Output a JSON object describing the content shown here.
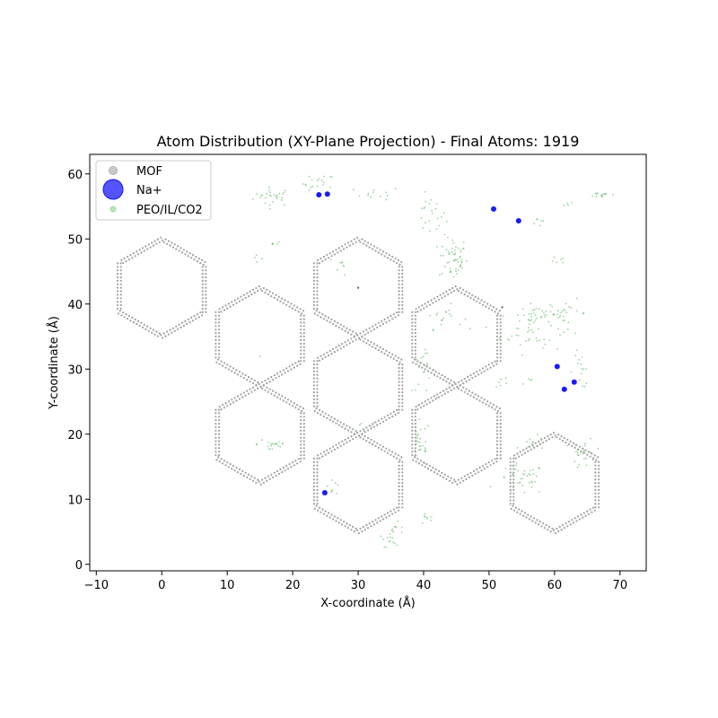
{
  "chart_data": {
    "type": "scatter",
    "title": "Atom Distribution (XY-Plane Projection) - Final Atoms: 1919",
    "xlabel": "X-coordinate (Å)",
    "ylabel": "Y-coordinate (Å)",
    "xlim": [
      -11,
      74
    ],
    "ylim": [
      -1,
      63
    ],
    "xticks": [
      -10,
      0,
      10,
      20,
      30,
      40,
      50,
      60,
      70
    ],
    "yticks": [
      0,
      10,
      20,
      30,
      40,
      50,
      60
    ],
    "grid": false,
    "legend_position": "top-left",
    "legend": [
      {
        "label": "MOF",
        "color": "#a9a9a9"
      },
      {
        "label": "Na+",
        "color": "#0000ff"
      },
      {
        "label": "PEO/IL/CO2",
        "color": "#8fd18f"
      }
    ],
    "series": [
      {
        "name": "MOF",
        "color": "#a0a0a0",
        "marker": "hexagonal-rings",
        "rings": [
          {
            "center": [
              0,
              42.5
            ]
          },
          {
            "center": [
              15,
              35
            ]
          },
          {
            "center": [
              30,
              42.5
            ]
          },
          {
            "center": [
              45,
              35
            ]
          },
          {
            "center": [
              15,
              20
            ]
          },
          {
            "center": [
              30,
              27.5
            ]
          },
          {
            "center": [
              30,
              12.5
            ]
          },
          {
            "center": [
              45,
              20
            ]
          },
          {
            "center": [
              60,
              12.5
            ]
          }
        ],
        "ring_radius": 7.5,
        "stray_points": [
          [
            30,
            42.5
          ],
          [
            52,
            39.5
          ]
        ]
      },
      {
        "name": "Na+",
        "color": "#0000ff",
        "points": [
          [
            24,
            56.8
          ],
          [
            25.3,
            56.9
          ],
          [
            50.7,
            54.6
          ],
          [
            54.5,
            52.8
          ],
          [
            60.4,
            30.4
          ],
          [
            63,
            28
          ],
          [
            61.5,
            26.9
          ],
          [
            24.9,
            11
          ]
        ]
      },
      {
        "name": "PEO/IL/CO2",
        "color": "#4caf50",
        "clusters": [
          {
            "center": [
              17,
              56.5
            ],
            "spread": [
              2.5,
              1.2
            ],
            "count": 28
          },
          {
            "center": [
              24,
              58.5
            ],
            "spread": [
              2,
              1.2
            ],
            "count": 18
          },
          {
            "center": [
              33,
              57
            ],
            "spread": [
              3,
              0.8
            ],
            "count": 12
          },
          {
            "center": [
              41,
              53.5
            ],
            "spread": [
              2,
              2.5
            ],
            "count": 22
          },
          {
            "center": [
              44.5,
              47
            ],
            "spread": [
              1.8,
              2.8
            ],
            "count": 55
          },
          {
            "center": [
              57.5,
              52.5
            ],
            "spread": [
              1,
              0.8
            ],
            "count": 6
          },
          {
            "center": [
              62,
              55.5
            ],
            "spread": [
              1,
              0.5
            ],
            "count": 4
          },
          {
            "center": [
              67.5,
              56.8
            ],
            "spread": [
              2,
              0.4
            ],
            "count": 14
          },
          {
            "center": [
              61,
              47
            ],
            "spread": [
              1,
              0.8
            ],
            "count": 6
          },
          {
            "center": [
              17,
              49.3
            ],
            "spread": [
              1,
              0.3
            ],
            "count": 5
          },
          {
            "center": [
              14.5,
              47
            ],
            "spread": [
              0.8,
              1
            ],
            "count": 4
          },
          {
            "center": [
              27.5,
              46
            ],
            "spread": [
              0.8,
              1.2
            ],
            "count": 8
          },
          {
            "center": [
              43,
              38
            ],
            "spread": [
              2.5,
              1.5
            ],
            "count": 18
          },
          {
            "center": [
              56.5,
              36
            ],
            "spread": [
              4,
              3
            ],
            "count": 45
          },
          {
            "center": [
              58,
              38.5
            ],
            "spread": [
              3,
              0.8
            ],
            "count": 28
          },
          {
            "center": [
              62,
              38.5
            ],
            "spread": [
              2.5,
              1.8
            ],
            "count": 20
          },
          {
            "center": [
              64,
              30
            ],
            "spread": [
              1.5,
              2.5
            ],
            "count": 15
          },
          {
            "center": [
              40,
              29.5
            ],
            "spread": [
              1.5,
              2.5
            ],
            "count": 22
          },
          {
            "center": [
              52,
              28
            ],
            "spread": [
              1,
              1
            ],
            "count": 6
          },
          {
            "center": [
              56,
              28
            ],
            "spread": [
              0.8,
              0.8
            ],
            "count": 4
          },
          {
            "center": [
              17,
              18.5
            ],
            "spread": [
              2,
              1.2
            ],
            "count": 20
          },
          {
            "center": [
              39.5,
              18.5
            ],
            "spread": [
              1.2,
              3
            ],
            "count": 30
          },
          {
            "center": [
              31,
              21
            ],
            "spread": [
              2,
              1
            ],
            "count": 6
          },
          {
            "center": [
              55,
              13
            ],
            "spread": [
              3,
              2
            ],
            "count": 40
          },
          {
            "center": [
              57,
              18.5
            ],
            "spread": [
              2,
              1
            ],
            "count": 12
          },
          {
            "center": [
              64.5,
              17
            ],
            "spread": [
              1.5,
              2
            ],
            "count": 25
          },
          {
            "center": [
              26,
              12.5
            ],
            "spread": [
              1.2,
              1.5
            ],
            "count": 8
          },
          {
            "center": [
              35.5,
              4.5
            ],
            "spread": [
              1.5,
              1.5
            ],
            "count": 22
          },
          {
            "center": [
              40.5,
              7
            ],
            "spread": [
              0.8,
              0.8
            ],
            "count": 8
          },
          {
            "center": [
              15,
              32
            ],
            "spread": [
              0.1,
              0.1
            ],
            "count": 1
          }
        ]
      }
    ]
  }
}
